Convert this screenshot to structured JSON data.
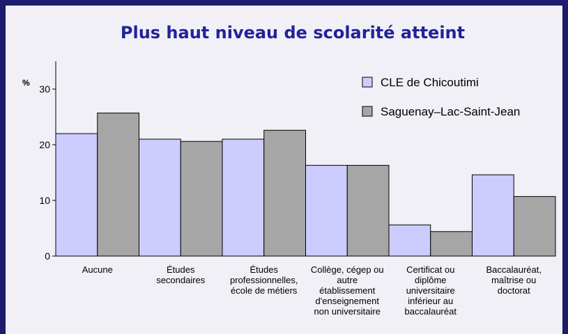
{
  "chart_data": {
    "type": "bar",
    "title": "Plus haut niveau de scolarité atteint",
    "y_label": "%",
    "categories": [
      "Aucune",
      "Études\nsecondaires",
      "Études\nprofessionnelles,\nécole de métiers",
      "Collège, cégep ou\nautre\nétablissement\nd'enseignement\nnon universitaire",
      "Certificat ou\ndiplôme\nuniversitaire\ninférieur au\nbaccalauréat",
      "Baccalauréat,\nmaîtrise ou\ndoctorat"
    ],
    "series": [
      {
        "name": "CLE de Chicoutimi",
        "color": "#ccccff",
        "values": [
          22,
          21,
          21,
          16.3,
          5.6,
          14.6
        ]
      },
      {
        "name": "Saguenay–Lac-Saint-Jean",
        "color": "#a6a6a6",
        "values": [
          25.7,
          20.6,
          22.6,
          16.3,
          4.4,
          10.7
        ]
      }
    ],
    "ylim": [
      0,
      35
    ],
    "yticks": [
      0,
      10,
      20,
      30
    ]
  }
}
